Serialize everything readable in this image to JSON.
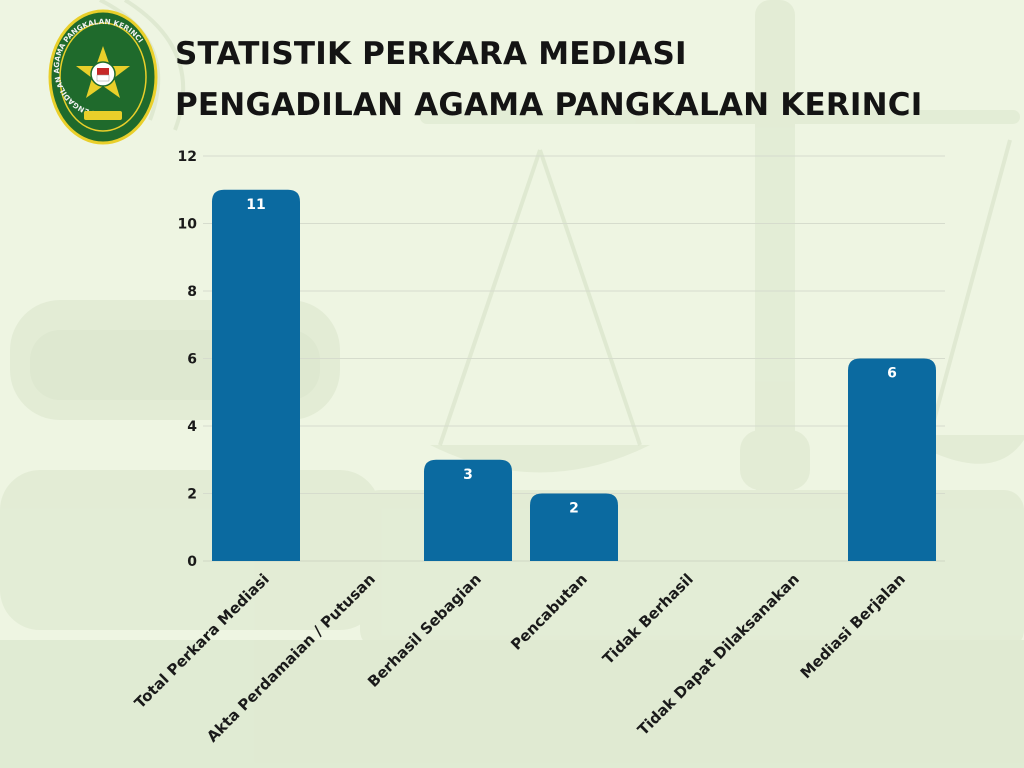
{
  "header": {
    "title_line1": "STATISTIK PERKARA MEDIASI",
    "title_line2": "PENGADILAN AGAMA PANGKALAN KERINCI"
  },
  "logo": {
    "ring_text": "PENGADILAN AGAMA PANGKALAN KERINCI",
    "colors": {
      "green": "#1f6a2c",
      "gold": "#e9cf2a",
      "red": "#c62828"
    }
  },
  "colors": {
    "bar": "#0b6aa0",
    "background": "#eef5e2",
    "grid": "#d6dccd",
    "text": "#1a1a1a"
  },
  "chart_data": {
    "type": "bar",
    "title": "STATISTIK PERKARA MEDIASI PENGADILAN AGAMA PANGKALAN KERINCI",
    "categories": [
      "Total Perkara Mediasi",
      "Akta Perdamaian / Putusan",
      "Berhasil Sebagian",
      "Pencabutan",
      "Tidak Berhasil",
      "Tidak Dapat Dilaksanakan",
      "Mediasi Berjalan"
    ],
    "values": [
      11,
      0,
      3,
      2,
      0,
      0,
      6
    ],
    "data_labels": [
      "11",
      "",
      "3",
      "2",
      "",
      "",
      "6"
    ],
    "ylim": [
      0,
      12
    ],
    "yticks": [
      0,
      2,
      4,
      6,
      8,
      10,
      12
    ],
    "grid": true,
    "legend": "none"
  }
}
